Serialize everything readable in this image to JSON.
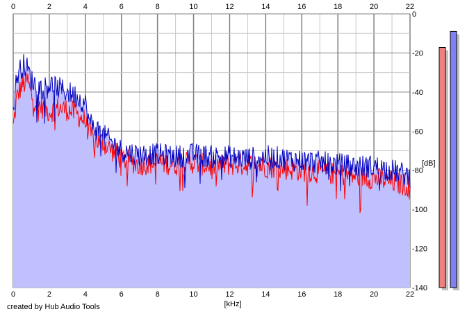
{
  "footer": {
    "credit": "created by Hub Audio Tools"
  },
  "colors": {
    "fill": "#c0c0ff",
    "grid_minor": "#c8c8c8",
    "grid_major": "#808080",
    "left_channel": "#ff0000",
    "right_channel": "#0000c0",
    "left_meter": "#f08080",
    "right_meter": "#8080f0"
  },
  "chart_data": {
    "type": "line",
    "xlabel": "[kHz]",
    "ylabel": "[dB]",
    "xlim": [
      0,
      22
    ],
    "ylim": [
      -140,
      0
    ],
    "xticks": [
      "0",
      "2",
      "4",
      "6",
      "8",
      "10",
      "12",
      "14",
      "16",
      "18",
      "20",
      "22"
    ],
    "yticks": [
      "0",
      "-20",
      "-40",
      "-60",
      "-80",
      "-100",
      "-120",
      "-140"
    ],
    "grid": true,
    "series": [
      {
        "color": "red",
        "x": [
          0,
          0.2,
          0.4,
          0.6,
          0.8,
          1,
          1.5,
          2,
          2.5,
          3,
          3.5,
          4,
          4.2,
          4.5,
          5,
          5.5,
          6,
          7,
          8,
          9,
          10,
          11,
          12,
          13,
          14,
          15,
          16,
          17,
          18,
          19,
          20,
          21,
          22
        ],
        "y": [
          -58,
          -43,
          -38,
          -36,
          -34,
          -42,
          -47,
          -50,
          -48,
          -49,
          -51,
          -55,
          -61,
          -64,
          -66,
          -70,
          -74,
          -77,
          -76,
          -77,
          -76,
          -78,
          -77,
          -77,
          -78,
          -79,
          -80,
          -81,
          -82,
          -83,
          -84,
          -86,
          -88
        ]
      },
      {
        "color": "blue",
        "x": [
          0,
          0.2,
          0.4,
          0.6,
          0.8,
          1,
          1.5,
          2,
          2.5,
          3,
          3.5,
          4,
          4.2,
          4.5,
          5,
          5.5,
          6,
          7,
          8,
          9,
          10,
          11,
          12,
          13,
          14,
          15,
          16,
          17,
          18,
          19,
          20,
          21,
          22
        ],
        "y": [
          -50,
          -32,
          -28,
          -26,
          -28,
          -34,
          -38,
          -36,
          -38,
          -40,
          -42,
          -46,
          -55,
          -58,
          -62,
          -66,
          -70,
          -72,
          -72,
          -73,
          -72,
          -73,
          -73,
          -74,
          -73,
          -74,
          -75,
          -76,
          -77,
          -78,
          -78,
          -80,
          -83
        ]
      }
    ]
  },
  "meters": {
    "left_level": 0.9,
    "right_level": 0.96
  }
}
